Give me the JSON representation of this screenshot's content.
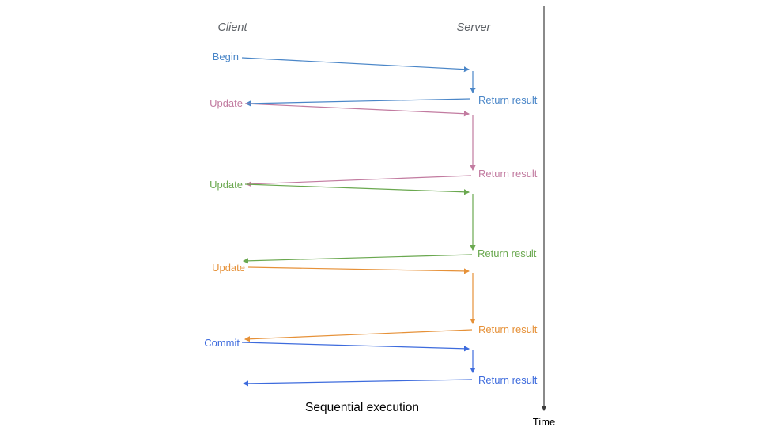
{
  "diagram": {
    "client_header": "Client",
    "server_header": "Server",
    "title": "Sequential execution",
    "time_axis_label": "Time",
    "header_color": "#5f6368",
    "axis_color": "#3c3c3c",
    "title_color": "#000000"
  },
  "sequences": [
    {
      "label": "Begin",
      "return_label": "Return result",
      "color": "#4a86c8"
    },
    {
      "label": "Update",
      "return_label": "Return result",
      "color": "#c27ba0"
    },
    {
      "label": "Update",
      "return_label": "Return result",
      "color": "#6aa84f"
    },
    {
      "label": "Update",
      "return_label": "Return result",
      "color": "#e69138"
    },
    {
      "label": "Commit",
      "return_label": "Return result",
      "color": "#3d6bdd"
    }
  ]
}
